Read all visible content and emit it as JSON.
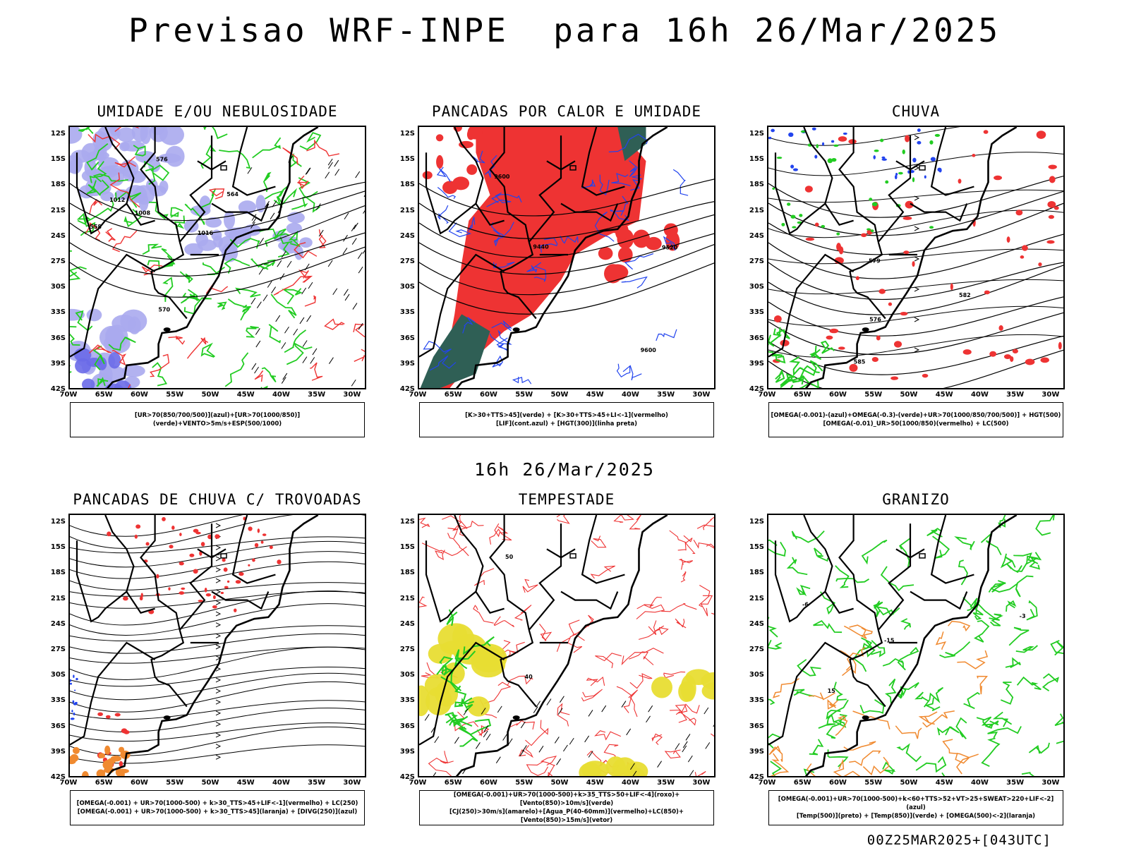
{
  "title": "Previsao WRF-INPE  para 16h 26/Mar/2025",
  "subtitle": "16h 26/Mar/2025",
  "footer": "00Z25MAR2025+[043UTC]",
  "lat_labels": [
    "12S",
    "15S",
    "18S",
    "21S",
    "24S",
    "27S",
    "30S",
    "33S",
    "36S",
    "39S",
    "42S"
  ],
  "lon_labels": [
    "70W",
    "65W",
    "60W",
    "55W",
    "50W",
    "45W",
    "40W",
    "35W",
    "30W"
  ],
  "panels": [
    {
      "title": "UMIDADE E/OU NEBULOSIDADE",
      "legend": [
        "[UR>70(850/700/500)](azul)+[UR>70(1000/850)](verde)+VENTO>5m/s+ESP(500/1000)"
      ],
      "contour_labels": [
        "1008",
        "1012",
        "1016",
        "576",
        "570",
        "564",
        "558"
      ]
    },
    {
      "title": "PANCADAS POR CALOR E UMIDADE",
      "legend": [
        "[K>30+TTS>45](verde) + [K>30+TTS>45+LI<-1](vermelho)",
        "[LIF](cont.azul) + [HGT(300)](linha preta)"
      ],
      "contour_labels": [
        "9600",
        "9520",
        "9440",
        "9600"
      ]
    },
    {
      "title": "CHUVA",
      "legend": [
        "[OMEGA(-0.001)-(azul)+OMEGA(-0.3)-(verde)+UR>70(1000/850/700/500)] + HGT(500)",
        "[OMEGA(-0.01)_UR>50(1000/850)(vermelho) + LC(500)"
      ],
      "contour_labels": [
        "585",
        "582",
        "579",
        "576"
      ]
    },
    {
      "title": "PANCADAS DE CHUVA C/ TROVOADAS",
      "legend": [
        "[OMEGA(-0.001) + UR>70(1000-500) + k>30_TTS>45+LIF<-1](vermelho) + LC(250)",
        "[OMEGA(-0.001) + UR>70(1000-500) + k>30_TTS>45](laranja) + [DIVG(250)](azul)"
      ],
      "contour_labels": []
    },
    {
      "title": "TEMPESTADE",
      "legend": [
        "[OMEGA(-0.001)+UR>70(1000-500)+k>35_TTS>50+LIF<-4](roxo)+[Vento(850)>10m/s](verde)",
        "[CJ(250)>30m/s](amarelo)+[Agua_P(40-60mm)](vermelho)+LC(850)+[Vento(850)>15m/s](vetor)"
      ],
      "contour_labels": [
        "40",
        "50"
      ]
    },
    {
      "title": "GRANIZO",
      "legend": [
        "[OMEGA(-0.001)+UR>70(1000-500)+k<60+TTS>52+VT>25+SWEAT>220+LIF<-2](azul)",
        "[Temp(500)](preto) + [Temp(850)](verde) + [OMEGA(500)<-2](laranja)"
      ],
      "contour_labels": [
        "-15",
        "-6",
        "15",
        "-3"
      ]
    }
  ],
  "colors": {
    "green": "#22cc22",
    "red": "#ee3333",
    "blue": "#2244ee",
    "lavender": "#aaaaee",
    "darkgreen": "#2f5f55",
    "yellow": "#e8dd33",
    "orange": "#f08a30",
    "black": "#000000"
  }
}
